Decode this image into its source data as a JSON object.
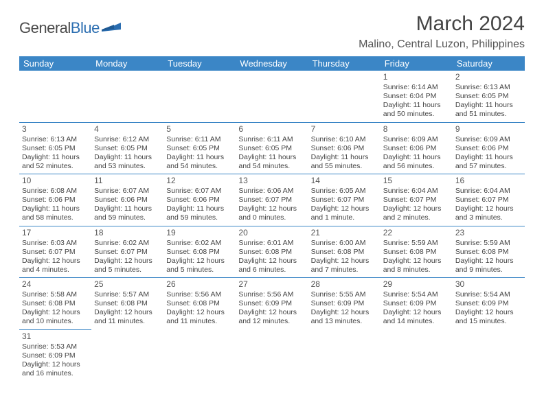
{
  "logo": {
    "part1": "General",
    "part2": "Blue"
  },
  "title": "March 2024",
  "location": "Malino, Central Luzon, Philippines",
  "colors": {
    "header_bg": "#3b86c6",
    "header_fg": "#ffffff",
    "border": "#3b86c6",
    "text": "#444444",
    "logo_gray": "#4a4a4a",
    "logo_blue": "#2a6db0"
  },
  "weekdays": [
    "Sunday",
    "Monday",
    "Tuesday",
    "Wednesday",
    "Thursday",
    "Friday",
    "Saturday"
  ],
  "weeks": [
    [
      null,
      null,
      null,
      null,
      null,
      {
        "n": "1",
        "sunrise": "Sunrise: 6:14 AM",
        "sunset": "Sunset: 6:04 PM",
        "daylight": "Daylight: 11 hours and 50 minutes."
      },
      {
        "n": "2",
        "sunrise": "Sunrise: 6:13 AM",
        "sunset": "Sunset: 6:05 PM",
        "daylight": "Daylight: 11 hours and 51 minutes."
      }
    ],
    [
      {
        "n": "3",
        "sunrise": "Sunrise: 6:13 AM",
        "sunset": "Sunset: 6:05 PM",
        "daylight": "Daylight: 11 hours and 52 minutes."
      },
      {
        "n": "4",
        "sunrise": "Sunrise: 6:12 AM",
        "sunset": "Sunset: 6:05 PM",
        "daylight": "Daylight: 11 hours and 53 minutes."
      },
      {
        "n": "5",
        "sunrise": "Sunrise: 6:11 AM",
        "sunset": "Sunset: 6:05 PM",
        "daylight": "Daylight: 11 hours and 54 minutes."
      },
      {
        "n": "6",
        "sunrise": "Sunrise: 6:11 AM",
        "sunset": "Sunset: 6:05 PM",
        "daylight": "Daylight: 11 hours and 54 minutes."
      },
      {
        "n": "7",
        "sunrise": "Sunrise: 6:10 AM",
        "sunset": "Sunset: 6:06 PM",
        "daylight": "Daylight: 11 hours and 55 minutes."
      },
      {
        "n": "8",
        "sunrise": "Sunrise: 6:09 AM",
        "sunset": "Sunset: 6:06 PM",
        "daylight": "Daylight: 11 hours and 56 minutes."
      },
      {
        "n": "9",
        "sunrise": "Sunrise: 6:09 AM",
        "sunset": "Sunset: 6:06 PM",
        "daylight": "Daylight: 11 hours and 57 minutes."
      }
    ],
    [
      {
        "n": "10",
        "sunrise": "Sunrise: 6:08 AM",
        "sunset": "Sunset: 6:06 PM",
        "daylight": "Daylight: 11 hours and 58 minutes."
      },
      {
        "n": "11",
        "sunrise": "Sunrise: 6:07 AM",
        "sunset": "Sunset: 6:06 PM",
        "daylight": "Daylight: 11 hours and 59 minutes."
      },
      {
        "n": "12",
        "sunrise": "Sunrise: 6:07 AM",
        "sunset": "Sunset: 6:06 PM",
        "daylight": "Daylight: 11 hours and 59 minutes."
      },
      {
        "n": "13",
        "sunrise": "Sunrise: 6:06 AM",
        "sunset": "Sunset: 6:07 PM",
        "daylight": "Daylight: 12 hours and 0 minutes."
      },
      {
        "n": "14",
        "sunrise": "Sunrise: 6:05 AM",
        "sunset": "Sunset: 6:07 PM",
        "daylight": "Daylight: 12 hours and 1 minute."
      },
      {
        "n": "15",
        "sunrise": "Sunrise: 6:04 AM",
        "sunset": "Sunset: 6:07 PM",
        "daylight": "Daylight: 12 hours and 2 minutes."
      },
      {
        "n": "16",
        "sunrise": "Sunrise: 6:04 AM",
        "sunset": "Sunset: 6:07 PM",
        "daylight": "Daylight: 12 hours and 3 minutes."
      }
    ],
    [
      {
        "n": "17",
        "sunrise": "Sunrise: 6:03 AM",
        "sunset": "Sunset: 6:07 PM",
        "daylight": "Daylight: 12 hours and 4 minutes."
      },
      {
        "n": "18",
        "sunrise": "Sunrise: 6:02 AM",
        "sunset": "Sunset: 6:07 PM",
        "daylight": "Daylight: 12 hours and 5 minutes."
      },
      {
        "n": "19",
        "sunrise": "Sunrise: 6:02 AM",
        "sunset": "Sunset: 6:08 PM",
        "daylight": "Daylight: 12 hours and 5 minutes."
      },
      {
        "n": "20",
        "sunrise": "Sunrise: 6:01 AM",
        "sunset": "Sunset: 6:08 PM",
        "daylight": "Daylight: 12 hours and 6 minutes."
      },
      {
        "n": "21",
        "sunrise": "Sunrise: 6:00 AM",
        "sunset": "Sunset: 6:08 PM",
        "daylight": "Daylight: 12 hours and 7 minutes."
      },
      {
        "n": "22",
        "sunrise": "Sunrise: 5:59 AM",
        "sunset": "Sunset: 6:08 PM",
        "daylight": "Daylight: 12 hours and 8 minutes."
      },
      {
        "n": "23",
        "sunrise": "Sunrise: 5:59 AM",
        "sunset": "Sunset: 6:08 PM",
        "daylight": "Daylight: 12 hours and 9 minutes."
      }
    ],
    [
      {
        "n": "24",
        "sunrise": "Sunrise: 5:58 AM",
        "sunset": "Sunset: 6:08 PM",
        "daylight": "Daylight: 12 hours and 10 minutes."
      },
      {
        "n": "25",
        "sunrise": "Sunrise: 5:57 AM",
        "sunset": "Sunset: 6:08 PM",
        "daylight": "Daylight: 12 hours and 11 minutes."
      },
      {
        "n": "26",
        "sunrise": "Sunrise: 5:56 AM",
        "sunset": "Sunset: 6:08 PM",
        "daylight": "Daylight: 12 hours and 11 minutes."
      },
      {
        "n": "27",
        "sunrise": "Sunrise: 5:56 AM",
        "sunset": "Sunset: 6:09 PM",
        "daylight": "Daylight: 12 hours and 12 minutes."
      },
      {
        "n": "28",
        "sunrise": "Sunrise: 5:55 AM",
        "sunset": "Sunset: 6:09 PM",
        "daylight": "Daylight: 12 hours and 13 minutes."
      },
      {
        "n": "29",
        "sunrise": "Sunrise: 5:54 AM",
        "sunset": "Sunset: 6:09 PM",
        "daylight": "Daylight: 12 hours and 14 minutes."
      },
      {
        "n": "30",
        "sunrise": "Sunrise: 5:54 AM",
        "sunset": "Sunset: 6:09 PM",
        "daylight": "Daylight: 12 hours and 15 minutes."
      }
    ],
    [
      {
        "n": "31",
        "sunrise": "Sunrise: 5:53 AM",
        "sunset": "Sunset: 6:09 PM",
        "daylight": "Daylight: 12 hours and 16 minutes."
      },
      null,
      null,
      null,
      null,
      null,
      null
    ]
  ]
}
